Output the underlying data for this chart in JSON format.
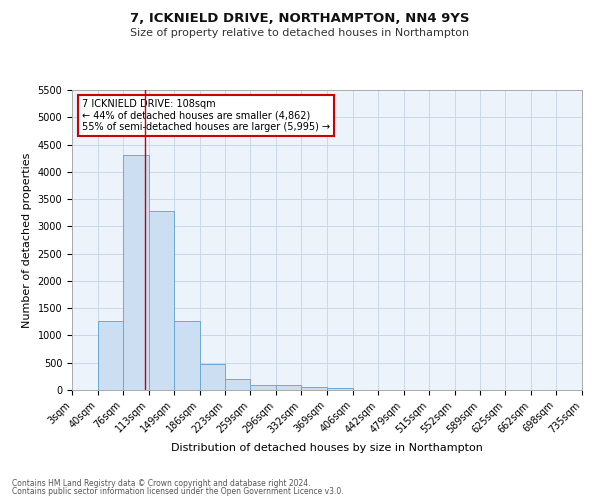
{
  "title": "7, ICKNIELD DRIVE, NORTHAMPTON, NN4 9YS",
  "subtitle": "Size of property relative to detached houses in Northampton",
  "xlabel": "Distribution of detached houses by size in Northampton",
  "ylabel": "Number of detached properties",
  "footnote1": "Contains HM Land Registry data © Crown copyright and database right 2024.",
  "footnote2": "Contains public sector information licensed under the Open Government Licence v3.0.",
  "bins": [
    3,
    40,
    76,
    113,
    149,
    186,
    223,
    259,
    296,
    332,
    369,
    406,
    442,
    479,
    515,
    552,
    589,
    625,
    662,
    698,
    735
  ],
  "counts": [
    0,
    1260,
    4300,
    3280,
    1270,
    480,
    195,
    100,
    85,
    55,
    35,
    0,
    0,
    0,
    0,
    0,
    0,
    0,
    0,
    0
  ],
  "bar_color": "#ccdff2",
  "bar_edge_color": "#6aaad4",
  "grid_color": "#c8d8ea",
  "property_size": 108,
  "vline_color": "#cc0000",
  "annotation_text": "7 ICKNIELD DRIVE: 108sqm\n← 44% of detached houses are smaller (4,862)\n55% of semi-detached houses are larger (5,995) →",
  "annotation_box_color": "#ffffff",
  "annotation_box_edge": "#cc0000",
  "ylim": [
    0,
    5500
  ],
  "yticks": [
    0,
    500,
    1000,
    1500,
    2000,
    2500,
    3000,
    3500,
    4000,
    4500,
    5000,
    5500
  ],
  "bin_labels": [
    "3sqm",
    "40sqm",
    "76sqm",
    "113sqm",
    "149sqm",
    "186sqm",
    "223sqm",
    "259sqm",
    "296sqm",
    "332sqm",
    "369sqm",
    "406sqm",
    "442sqm",
    "479sqm",
    "515sqm",
    "552sqm",
    "589sqm",
    "625sqm",
    "662sqm",
    "698sqm",
    "735sqm"
  ],
  "background_color": "#edf3fb",
  "fig_background": "#ffffff",
  "title_fontsize": 9.5,
  "subtitle_fontsize": 8,
  "ylabel_fontsize": 8,
  "xlabel_fontsize": 8,
  "tick_fontsize": 7,
  "footnote_fontsize": 5.5
}
